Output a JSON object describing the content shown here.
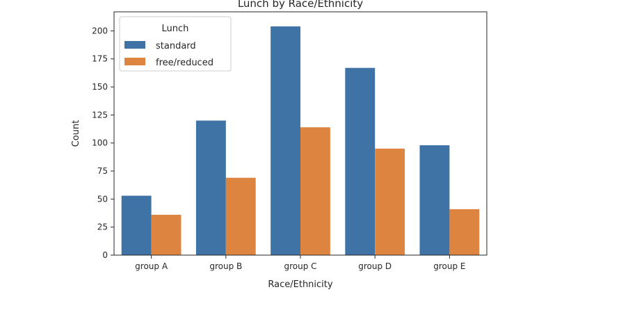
{
  "chart_data": {
    "type": "bar",
    "title": "Lunch by Race/Ethnicity",
    "xlabel": "Race/Ethnicity",
    "ylabel": "Count",
    "categories": [
      "group A",
      "group B",
      "group C",
      "group D",
      "group E"
    ],
    "series": [
      {
        "name": "standard",
        "values": [
          53,
          120,
          204,
          167,
          98
        ],
        "color": "#3f72a5"
      },
      {
        "name": "free/reduced",
        "values": [
          36,
          69,
          114,
          95,
          41
        ],
        "color": "#dd8540"
      }
    ],
    "ylim": [
      0,
      217
    ],
    "yticks": [
      0,
      25,
      50,
      75,
      100,
      125,
      150,
      175,
      200
    ],
    "grid": false,
    "legend": {
      "title": "Lunch",
      "placement": "top-left"
    }
  }
}
